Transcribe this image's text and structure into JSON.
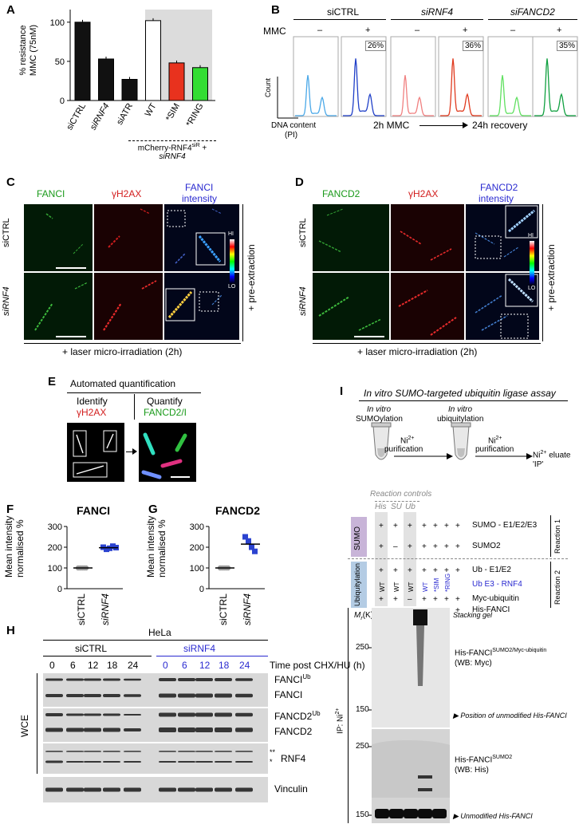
{
  "panels": {
    "A": "A",
    "B": "B",
    "C": "C",
    "D": "D",
    "E": "E",
    "F": "F",
    "G": "G",
    "H": "H",
    "I": "I"
  },
  "panelA": {
    "ylabel_line1": "% resistance",
    "ylabel_line2": "MMC (75nM)",
    "yticks": [
      "100",
      "50",
      "0"
    ],
    "bars": [
      {
        "label": "siCTRL",
        "value": 100,
        "color": "#111111"
      },
      {
        "label": "siRNF4",
        "value": 53,
        "color": "#111111"
      },
      {
        "label": "siATR",
        "value": 27,
        "color": "#111111"
      },
      {
        "label": "WT",
        "value": 102,
        "color": "#ffffff"
      },
      {
        "label": "*SIM",
        "value": 48,
        "color": "#e8321e"
      },
      {
        "label": "*RING",
        "value": 42,
        "color": "#33dd33"
      }
    ],
    "footer_line1": "mCherry-RNF4",
    "footer_sup": "siR",
    "footer_plus": " +",
    "footer_line2": "siRNF4"
  },
  "panelB": {
    "groups": [
      "siCTRL",
      "siRNF4",
      "siFANCD2"
    ],
    "mmc": "MMC",
    "minus": "–",
    "plus": "+",
    "percents": [
      "26%",
      "36%",
      "35%"
    ],
    "count": "Count",
    "xlabel1": "DNA content",
    "xlabel2": "(PI)",
    "timeline_a": "2h MMC",
    "timeline_b": "24h recovery"
  },
  "panelC": {
    "col1": "FANCI",
    "col2": "γH2AX",
    "col3a": "FANCI",
    "col3b": "intensity",
    "row1": "siCTRL",
    "row2": "siRNF4",
    "hi": "HI",
    "lo": "LO",
    "side": "+ pre-extraction",
    "bottom": "+ laser micro-irradiation (2h)"
  },
  "panelD": {
    "col1": "FANCD2",
    "col2": "γH2AX",
    "col3a": "FANCD2",
    "col3b": "intensity",
    "row1": "siCTRL",
    "row2": "siRNF4",
    "hi": "HI",
    "lo": "LO",
    "side": "+ pre-extraction",
    "bottom": "+ laser micro-irradiation (2h)"
  },
  "panelE": {
    "title": "Automated quantification",
    "identify": "Identify",
    "identify2": "γH2AX",
    "quantify": "Quantify",
    "quantify2": "FANCD2/I"
  },
  "panelF": {
    "title": "FANCI",
    "ylabel1": "Mean intensity",
    "ylabel2": "normalised %",
    "yticks": [
      "300",
      "200",
      "100",
      "0"
    ],
    "xlabels": [
      "siCTRL",
      "siRNF4"
    ],
    "siCTRL_points": [
      100,
      100,
      100,
      100,
      100
    ],
    "siRNF4_points": [
      200,
      190,
      195,
      205,
      198
    ]
  },
  "panelG": {
    "title": "FANCD2",
    "ylabel1": "Mean intensity",
    "ylabel2": "normalised %",
    "yticks": [
      "300",
      "200",
      "100",
      "0"
    ],
    "xlabels": [
      "siCTRL",
      "siRNF4"
    ],
    "siCTRL_points": [
      100,
      100,
      100,
      100,
      100
    ],
    "siRNF4_points": [
      250,
      230,
      200,
      180
    ]
  },
  "panelH": {
    "cell": "HeLa",
    "grp1": "siCTRL",
    "grp2": "siRNF4",
    "times": [
      "0",
      "6",
      "12",
      "18",
      "24"
    ],
    "timelabel": "Time post CHX/HU (h)",
    "fanci_ub": "FANCI",
    "fanci": "FANCI",
    "fancd2_ub": "FANCD2",
    "fancd2": "FANCD2",
    "ub": "Ub",
    "rnf4": "RNF4",
    "stars": "**",
    "star": "*",
    "vinculin": "Vinculin",
    "wce": "WCE"
  },
  "panelI": {
    "title": "In vitro SUMO-targeted ubiquitin ligase assay",
    "step1a": "In vitro",
    "step1b": "SUMOylation",
    "step2a": "In vitro",
    "step2b": "ubiquitylation",
    "ni": "Ni",
    "purif": "purification",
    "eluate1": "Ni",
    "eluate2": "eluate",
    "eluate3": "'IP'",
    "controls": "Reaction controls",
    "ctrl_cols": [
      "His",
      "SU",
      "Ub"
    ],
    "sumo_box": "SUMO",
    "ubiq_box": "Ubiquitylation",
    "row_sumo_e": "SUMO - E1/E2/E3",
    "row_sumo2": "SUMO2",
    "row_ub_e": "Ub - E1/E2",
    "row_ub_e3": "Ub E3 - RNF4",
    "row_myc": "Myc-ubiquitin",
    "row_his": "His-FANCI",
    "reaction1": "Reaction 1",
    "reaction2": "Reaction 2",
    "mr": "M",
    "mr_sub": "r",
    "mr_unit": "(K)",
    "stacking": "Stacking gel",
    "m250a": "250",
    "m150a": "150",
    "m250b": "250",
    "m150b": "150",
    "blot1_label": "His-FANCI",
    "blot1_sup": "SUMO2/Myc-ubiquitin",
    "blot1_wb": "(WB: Myc)",
    "pos_unmod": "Position of unmodified His-FANCI",
    "blot2_label": "His-FANCI",
    "blot2_sup": "SUMO2",
    "blot2_wb": "(WB: His)",
    "unmod": "Unmodified His-FANCI",
    "ip": "IP: Ni",
    "wt": "WT",
    "sim": "*SIM",
    "ring": "*RING",
    "plus": "+",
    "minus": "–"
  }
}
